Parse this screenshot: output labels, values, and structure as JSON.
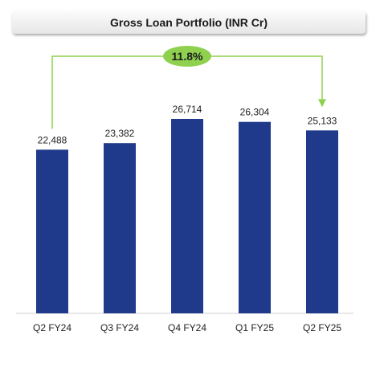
{
  "chart_data": {
    "type": "bar",
    "title": "Gross Loan Portfolio (INR Cr)",
    "categories": [
      "Q2 FY24",
      "Q3 FY24",
      "Q4 FY24",
      "Q1 FY25",
      "Q2 FY25"
    ],
    "values": [
      22488,
      23382,
      26714,
      26304,
      25133
    ],
    "value_labels": [
      "22,488",
      "23,382",
      "26,714",
      "26,304",
      "25,133"
    ],
    "annotation": {
      "label": "11.8%",
      "from_category": "Q2 FY24",
      "to_category": "Q2 FY25"
    },
    "bar_color": "#1f3a8a",
    "annotation_color": "#8fd14f"
  }
}
